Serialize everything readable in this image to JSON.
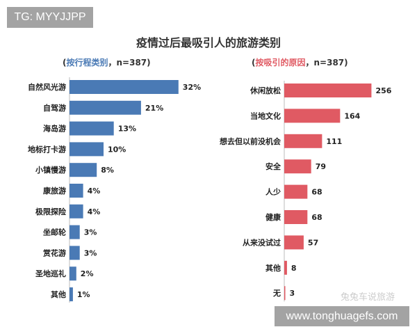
{
  "badge": "TG: MYYJJPP",
  "watermark": "兔兔车说旅游",
  "url_banner": "www.tonghuagefs.com",
  "chart_data": [
    {
      "type": "bar",
      "orientation": "horizontal",
      "title": "疫情过后最吸引人的旅游类别",
      "subtitle_open": "(",
      "subtitle_label": "按行程类别",
      "subtitle_rest": "，n=387)",
      "color": "#4a7ab5",
      "categories": [
        "自然风光游",
        "自驾游",
        "海岛游",
        "地标打卡游",
        "小镇慢游",
        "康旅游",
        "极限探险",
        "坐邮轮",
        "赏花游",
        "圣地巡礼",
        "其他"
      ],
      "values": [
        32,
        21,
        13,
        10,
        8,
        4,
        4,
        3,
        3,
        2,
        1
      ],
      "unit": "%"
    },
    {
      "type": "bar",
      "orientation": "horizontal",
      "subtitle_open": "(",
      "subtitle_label": "按吸引的原因",
      "subtitle_rest": "，n=387)",
      "color": "#e05a63",
      "categories": [
        "休闲放松",
        "当地文化",
        "想去但以前没机会",
        "安全",
        "人少",
        "健康",
        "从来没试过",
        "其他",
        "无"
      ],
      "values": [
        256,
        164,
        111,
        79,
        68,
        68,
        57,
        8,
        3
      ],
      "unit": ""
    }
  ]
}
